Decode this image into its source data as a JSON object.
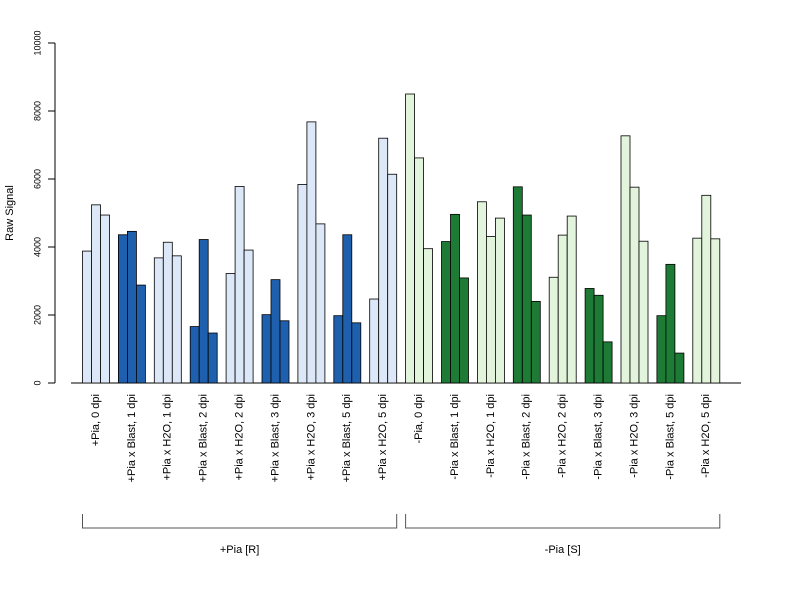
{
  "chart_data": {
    "type": "bar",
    "ylabel": "Raw Signal",
    "xlabel": "",
    "ylim": [
      0,
      10000
    ],
    "yticks": [
      0,
      2000,
      4000,
      6000,
      8000,
      10000
    ],
    "categories": [
      "+Pia, 0 dpi",
      "+Pia x Blast, 1 dpi",
      "+Pia x H2O, 1 dpi",
      "+Pia x Blast, 2 dpi",
      "+Pia x H2O, 2 dpi",
      "+Pia x Blast, 3 dpi",
      "+Pia x H2O, 3 dpi",
      "+Pia x Blast, 5 dpi",
      "+Pia x H2O, 5 dpi",
      "-Pia, 0 dpi",
      "-Pia x Blast, 1 dpi",
      "-Pia x H2O, 1 dpi",
      "-Pia x Blast, 2 dpi",
      "-Pia x H2O, 2 dpi",
      "-Pia x Blast, 3 dpi",
      "-Pia x H2O, 3 dpi",
      "-Pia x Blast, 5 dpi",
      "-Pia x H2O, 5 dpi"
    ],
    "replicates_per_category": 3,
    "values": [
      [
        3880,
        5240,
        4940
      ],
      [
        4360,
        4460,
        2880
      ],
      [
        3680,
        4140,
        3740
      ],
      [
        1660,
        4220,
        1470
      ],
      [
        3220,
        5780,
        3910
      ],
      [
        2010,
        3040,
        1830
      ],
      [
        5840,
        7680,
        4680
      ],
      [
        1980,
        4360,
        1770
      ],
      [
        2470,
        7200,
        6140
      ],
      [
        8500,
        6620,
        3950
      ],
      [
        4160,
        4960,
        3090
      ],
      [
        5330,
        4310,
        4850
      ],
      [
        5770,
        4940,
        2400
      ],
      [
        3110,
        4350,
        4910
      ],
      [
        2780,
        2580,
        1210
      ],
      [
        7270,
        5760,
        4170
      ],
      [
        1980,
        3490,
        880
      ],
      [
        4260,
        5520,
        4240
      ]
    ],
    "bar_colors": [
      "#dce8f7",
      "#1e5fae",
      "#dce8f7",
      "#1e5fae",
      "#dce8f7",
      "#1e5fae",
      "#dce8f7",
      "#1e5fae",
      "#dce8f7",
      "#e2f5dc",
      "#1e7b35",
      "#e2f5dc",
      "#1e7b35",
      "#e2f5dc",
      "#1e7b35",
      "#e2f5dc",
      "#1e7b35",
      "#e2f5dc"
    ],
    "groups": [
      {
        "label": "+Pia [R]",
        "first_category": 0,
        "last_category": 8
      },
      {
        "label": "-Pia [S]",
        "first_category": 9,
        "last_category": 17
      }
    ],
    "legend": "none",
    "grid": false
  }
}
